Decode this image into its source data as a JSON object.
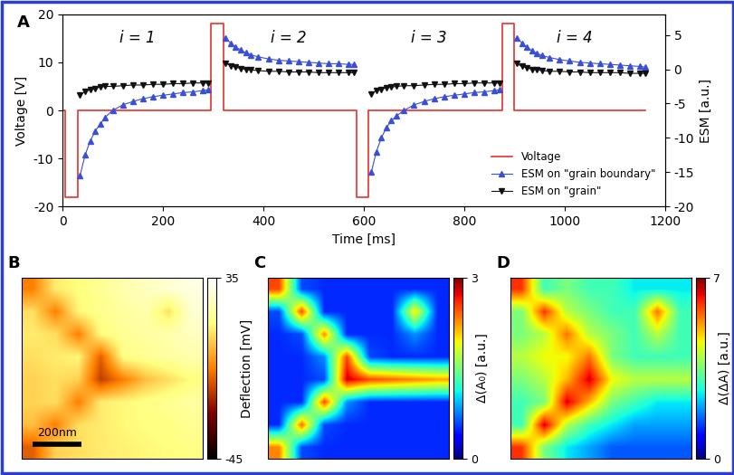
{
  "chart_data": [
    {
      "type": "line",
      "title": "A",
      "xlabel": "Time [ms]",
      "ylabel": "Voltage [V]",
      "y2label": "ESM [a.u.]",
      "xlim": [
        0,
        1200
      ],
      "xticks": [
        0,
        200,
        400,
        600,
        800,
        1000,
        1200
      ],
      "ylim": [
        -20,
        20
      ],
      "yticks": [
        -20,
        -10,
        0,
        10,
        20
      ],
      "y2lim": [
        -20,
        8
      ],
      "y2ticks": [
        -20,
        -15,
        -10,
        -5,
        0,
        5
      ],
      "legend": "lower right",
      "annotations": [
        {
          "text": "i = 1",
          "x": 150,
          "y": 15
        },
        {
          "text": "i = 2",
          "x": 450,
          "y": 15
        },
        {
          "text": "i = 3",
          "x": 730,
          "y": 15
        },
        {
          "text": "i = 4",
          "x": 1020,
          "y": 15
        }
      ],
      "series": [
        {
          "name": "Voltage",
          "color": "#e8312a",
          "line_style": "solid",
          "marker": "none",
          "axis": "y",
          "x": [
            0,
            5,
            5,
            30,
            30,
            295,
            295,
            320,
            320,
            585,
            585,
            610,
            610,
            875,
            875,
            900,
            900,
            1160
          ],
          "values": [
            0,
            0,
            -18,
            -18,
            0,
            0,
            18,
            18,
            0,
            0,
            -18,
            -18,
            0,
            0,
            18,
            18,
            0,
            0
          ]
        },
        {
          "name": "ESM on \"grain boundary\"",
          "color": "#3a4fd8",
          "line_style": "solid",
          "marker": "triangle_up",
          "axis": "y2",
          "x": [
            35,
            45,
            55,
            65,
            75,
            85,
            100,
            120,
            140,
            160,
            180,
            200,
            220,
            240,
            260,
            280,
            290,
            310,
            325,
            335,
            345,
            355,
            365,
            375,
            390,
            410,
            430,
            450,
            470,
            490,
            510,
            530,
            550,
            570,
            580,
            600,
            615,
            625,
            635,
            645,
            655,
            665,
            680,
            700,
            720,
            740,
            760,
            780,
            800,
            820,
            840,
            860,
            870,
            890,
            905,
            915,
            925,
            935,
            945,
            955,
            970,
            990,
            1010,
            1030,
            1050,
            1070,
            1090,
            1110,
            1130,
            1150,
            1160
          ],
          "values": [
            -15.5,
            -12.5,
            -10.5,
            -9,
            -8,
            -7,
            -6,
            -5.2,
            -4.7,
            -4.3,
            -4,
            -3.8,
            -3.6,
            -3.4,
            -3.3,
            -3.1,
            -3,
            null,
            4.5,
            3.8,
            3.2,
            2.8,
            2.4,
            2.1,
            1.8,
            1.5,
            1.3,
            1.2,
            1.1,
            1,
            0.9,
            0.8,
            0.8,
            0.7,
            0.7,
            null,
            -15,
            -12,
            -10,
            -8.5,
            -7.5,
            -6.8,
            -6,
            -5.2,
            -4.7,
            -4.3,
            -4,
            -3.8,
            -3.6,
            -3.4,
            -3.3,
            -3.1,
            -3,
            null,
            4.6,
            3.8,
            3.2,
            2.7,
            2.3,
            2,
            1.7,
            1.4,
            1.2,
            1,
            0.9,
            0.8,
            0.7,
            0.6,
            0.5,
            0.4,
            0.3
          ]
        },
        {
          "name": "ESM on \"grain\"",
          "color": "#111111",
          "line_style": "solid",
          "marker": "triangle_down",
          "axis": "y2",
          "x": [
            35,
            45,
            55,
            65,
            75,
            85,
            100,
            120,
            140,
            160,
            180,
            200,
            220,
            240,
            260,
            280,
            290,
            310,
            325,
            335,
            345,
            355,
            365,
            375,
            390,
            410,
            430,
            450,
            470,
            490,
            510,
            530,
            550,
            570,
            580,
            600,
            615,
            625,
            635,
            645,
            655,
            665,
            680,
            700,
            720,
            740,
            760,
            780,
            800,
            820,
            840,
            860,
            870,
            890,
            905,
            915,
            925,
            935,
            945,
            955,
            970,
            990,
            1010,
            1030,
            1050,
            1070,
            1090,
            1110,
            1130,
            1150,
            1160
          ],
          "values": [
            -3.8,
            -3.2,
            -3,
            -2.8,
            -2.6,
            -2.5,
            -2.5,
            -2.4,
            -2.3,
            -2.3,
            -2.2,
            -2.2,
            -2.1,
            -2.1,
            -2,
            -2,
            -2,
            null,
            0.9,
            0.5,
            0.3,
            0.1,
            0,
            -0.1,
            -0.2,
            -0.3,
            -0.3,
            -0.4,
            -0.4,
            -0.4,
            -0.5,
            -0.5,
            -0.5,
            -0.5,
            -0.5,
            null,
            -3.6,
            -3.1,
            -2.9,
            -2.7,
            -2.6,
            -2.5,
            -2.4,
            -2.4,
            -2.3,
            -2.2,
            -2.2,
            -2.1,
            -2.1,
            -2,
            -2,
            -2,
            -2,
            null,
            0.8,
            0.4,
            0.2,
            0,
            -0.1,
            -0.2,
            -0.3,
            -0.3,
            -0.4,
            -0.4,
            -0.5,
            -0.5,
            -0.5,
            -0.5,
            -0.6,
            -0.6,
            -0.6
          ]
        }
      ]
    },
    {
      "type": "heatmap",
      "title": "B",
      "color": "afmhot",
      "tick_labels": false,
      "annotations": [
        {
          "text": "200nm"
        }
      ],
      "colorbar": {
        "label": "Deflection [mV]",
        "range": [
          -45,
          35
        ],
        "ticks": [
          35,
          -45
        ]
      },
      "cells": [
        [
          -5,
          12,
          15,
          18,
          22,
          25,
          28,
          30
        ],
        [
          10,
          -5,
          14,
          17,
          20,
          22,
          10,
          28
        ],
        [
          12,
          10,
          -5,
          15,
          18,
          20,
          22,
          25
        ],
        [
          10,
          12,
          14,
          -10,
          16,
          18,
          20,
          22
        ],
        [
          8,
          10,
          8,
          -15,
          -5,
          5,
          10,
          15
        ],
        [
          8,
          10,
          -5,
          12,
          14,
          16,
          18,
          20
        ],
        [
          5,
          -5,
          10,
          12,
          14,
          15,
          16,
          18
        ],
        [
          -10,
          8,
          10,
          12,
          13,
          14,
          15,
          16
        ]
      ]
    },
    {
      "type": "heatmap",
      "title": "C",
      "color": "jet",
      "tick_labels": false,
      "colorbar": {
        "label": "Δ(A₀) [a.u.]",
        "range": [
          0,
          3
        ],
        "ticks": [
          3,
          0
        ]
      },
      "cells": [
        [
          2.5,
          0.6,
          0.5,
          0.5,
          0.5,
          0.5,
          0.5,
          0.5
        ],
        [
          0.6,
          2.5,
          0.5,
          0.5,
          0.5,
          0.5,
          2.0,
          0.5
        ],
        [
          0.5,
          0.6,
          2.3,
          0.5,
          0.5,
          0.5,
          0.8,
          0.5
        ],
        [
          0.5,
          0.5,
          0.8,
          2.5,
          0.6,
          0.5,
          0.5,
          0.5
        ],
        [
          0.5,
          0.5,
          0.6,
          2.8,
          2.5,
          2.4,
          2.3,
          2.2
        ],
        [
          0.5,
          0.5,
          2.5,
          0.8,
          0.5,
          0.5,
          0.5,
          0.5
        ],
        [
          0.5,
          2.4,
          0.6,
          0.5,
          0.5,
          0.5,
          0.5,
          0.5
        ],
        [
          2.3,
          0.6,
          0.5,
          0.5,
          0.5,
          0.5,
          0.5,
          0.5
        ]
      ]
    },
    {
      "type": "heatmap",
      "title": "D",
      "color": "jet",
      "tick_labels": false,
      "colorbar": {
        "label": "Δ(ΔA) [a.u.]",
        "range": [
          0,
          7
        ],
        "ticks": [
          7,
          0
        ]
      },
      "cells": [
        [
          6,
          3,
          3.5,
          3,
          3,
          2.5,
          2.5,
          2.5
        ],
        [
          3.5,
          6,
          4,
          3.5,
          3,
          3,
          5.5,
          3
        ],
        [
          3.5,
          4,
          5.5,
          4,
          3.5,
          3,
          4,
          3
        ],
        [
          4,
          4.5,
          4.5,
          5.5,
          3.5,
          3,
          3,
          3
        ],
        [
          3.5,
          4,
          5,
          6.5,
          4.5,
          4,
          4,
          4
        ],
        [
          3,
          3.5,
          6.5,
          5,
          3.5,
          3,
          2.5,
          2.5
        ],
        [
          3,
          6.5,
          4,
          3,
          2.5,
          2,
          2,
          2
        ],
        [
          6,
          3.5,
          2.5,
          2,
          1.5,
          1.5,
          1.5,
          1.5
        ]
      ]
    }
  ]
}
